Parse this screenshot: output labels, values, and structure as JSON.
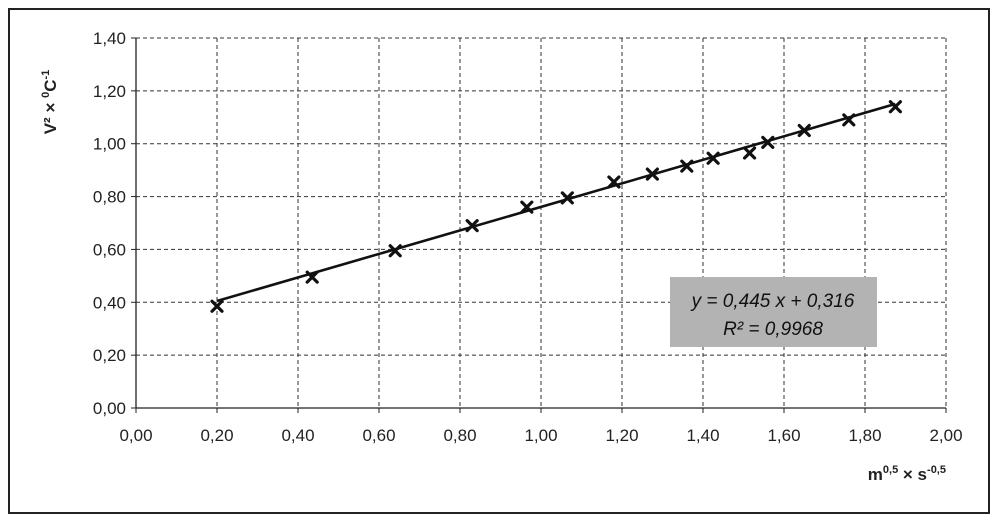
{
  "chart_data": {
    "type": "scatter",
    "xlim": [
      0,
      2
    ],
    "ylim": [
      0,
      1.4
    ],
    "xticks": [
      0,
      0.2,
      0.4,
      0.6,
      0.8,
      1.0,
      1.2,
      1.4,
      1.6,
      1.8,
      2.0
    ],
    "yticks": [
      0,
      0.2,
      0.4,
      0.6,
      0.8,
      1.0,
      1.2,
      1.4
    ],
    "xtick_labels": [
      "0,00",
      "0,20",
      "0,40",
      "0,60",
      "0,80",
      "1,00",
      "1,20",
      "1,40",
      "1,60",
      "1,80",
      "2,00"
    ],
    "ytick_labels": [
      "0,00",
      "0,20",
      "0,40",
      "0,60",
      "0,80",
      "1,00",
      "1,20",
      "1,40"
    ],
    "xlabel": {
      "base1": "m",
      "sup1": "0,5",
      "mid": " × s",
      "sup2": "-0,5"
    },
    "ylabel": {
      "base1": "V²",
      "mid": " × ",
      "sup1": "0",
      "base2": "C",
      "sup2": "-1"
    },
    "grid": true,
    "grid_style": "dashed",
    "points": [
      {
        "x": 0.2,
        "y": 0.385
      },
      {
        "x": 0.435,
        "y": 0.495
      },
      {
        "x": 0.64,
        "y": 0.595
      },
      {
        "x": 0.83,
        "y": 0.69
      },
      {
        "x": 0.965,
        "y": 0.76
      },
      {
        "x": 1.065,
        "y": 0.795
      },
      {
        "x": 1.18,
        "y": 0.855
      },
      {
        "x": 1.275,
        "y": 0.885
      },
      {
        "x": 1.36,
        "y": 0.915
      },
      {
        "x": 1.425,
        "y": 0.945
      },
      {
        "x": 1.515,
        "y": 0.965
      },
      {
        "x": 1.56,
        "y": 1.005
      },
      {
        "x": 1.65,
        "y": 1.05
      },
      {
        "x": 1.76,
        "y": 1.09
      },
      {
        "x": 1.875,
        "y": 1.14
      }
    ],
    "trendline": {
      "slope": 0.445,
      "intercept": 0.316,
      "x_start": 0.2,
      "x_end": 1.875
    },
    "equation_text": "y = 0,445 x + 0,316",
    "r2_text": "R² = 0,9968",
    "colors": {
      "marker": "#111111",
      "line": "#111111",
      "grid": "#333333",
      "label_box": "#b3b3b3"
    }
  }
}
